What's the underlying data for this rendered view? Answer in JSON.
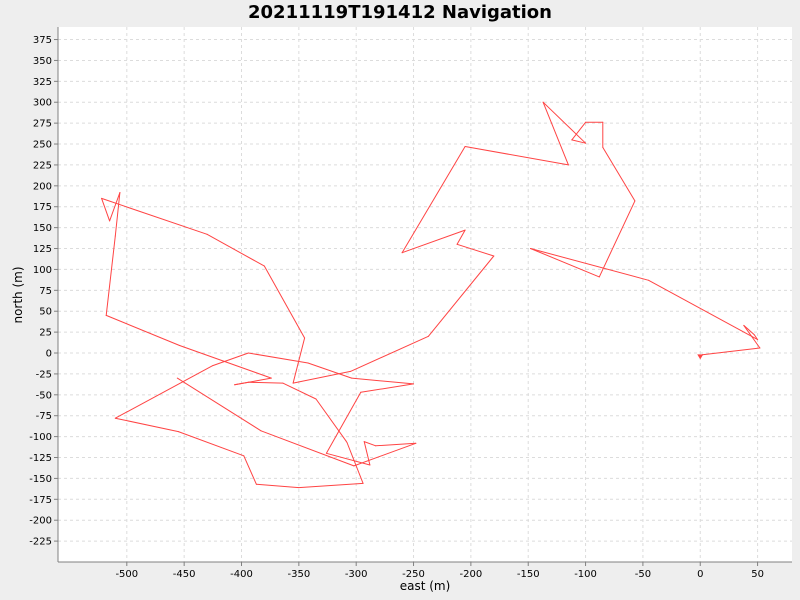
{
  "chart_data": {
    "type": "line",
    "title": "20211119T191412 Navigation",
    "xlabel": "east (m)",
    "ylabel": "north (m)",
    "xlim": [
      -560,
      80
    ],
    "ylim": [
      -250,
      390
    ],
    "xticks": [
      -500,
      -450,
      -400,
      -350,
      -300,
      -250,
      -200,
      -150,
      -100,
      -50,
      0,
      50
    ],
    "yticks": [
      -225,
      -200,
      -175,
      -150,
      -125,
      -100,
      -75,
      -50,
      -25,
      0,
      25,
      50,
      75,
      100,
      125,
      150,
      175,
      200,
      225,
      250,
      275,
      300,
      325,
      350,
      375
    ],
    "grid": true,
    "background": "#ffffff",
    "page_background": "#eeeeee",
    "series": [
      {
        "color": "#ff4444",
        "x": [
          0,
          2,
          52,
          38,
          47,
          50,
          -45,
          -148,
          -88,
          -57,
          -85,
          -85,
          -100,
          -112,
          -100,
          -137,
          -115,
          -205,
          -260,
          -205,
          -212,
          -180,
          -237,
          -305,
          -355,
          -345,
          -380,
          -430,
          -522,
          -515,
          -506,
          -510,
          -518,
          -454,
          -374,
          -406,
          -394,
          -364,
          -335,
          -309,
          -308,
          -294,
          -350,
          -387,
          -398,
          -455,
          -510,
          -425,
          -394,
          -342,
          -304,
          -250,
          -296,
          -326,
          -288,
          -293,
          -283,
          -248,
          -302,
          -383,
          -456
        ],
        "y": [
          -4,
          -2,
          6,
          33,
          22,
          16,
          87,
          125,
          91,
          182,
          246,
          276,
          276,
          255,
          251,
          300,
          225,
          247,
          120,
          147,
          130,
          116,
          20,
          -22,
          -36,
          18,
          104,
          142,
          185,
          158,
          192,
          140,
          45,
          9,
          -30,
          -38,
          -35,
          -36,
          -55,
          -105,
          -107,
          -156,
          -161,
          -157,
          -123,
          -94,
          -78,
          -15,
          0,
          -12,
          -30,
          -37,
          -47,
          -120,
          -134,
          -106,
          -111,
          -108,
          -135,
          -93,
          -30
        ]
      }
    ]
  }
}
